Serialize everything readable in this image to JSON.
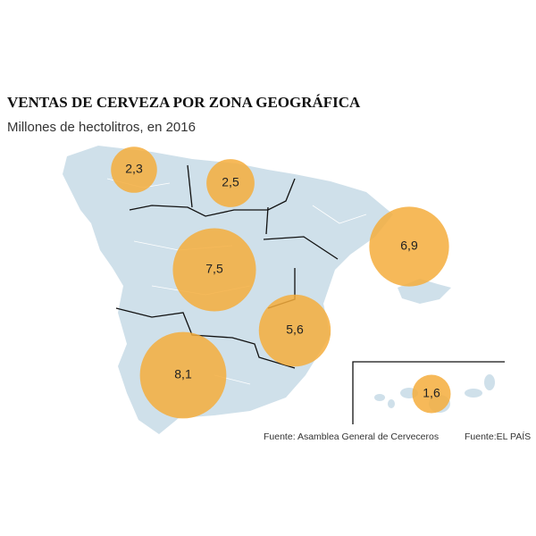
{
  "chart_data": {
    "type": "bubble-map",
    "title": "VENTAS DE CERVEZA POR ZONA GEOGRÁFICA",
    "subtitle": "Millones de hectolitros, en 2016",
    "values": [
      2.3,
      2.5,
      7.5,
      6.9,
      5.6,
      8.1,
      1.6
    ],
    "value_labels": [
      "2,3",
      "2,5",
      "7,5",
      "6,9",
      "5,6",
      "8,1",
      "1,6"
    ],
    "color": "#f5ad3c",
    "source": "Fuente: Asamblea General de Cerveceros",
    "credit": "Fuente:EL PAÍS"
  }
}
